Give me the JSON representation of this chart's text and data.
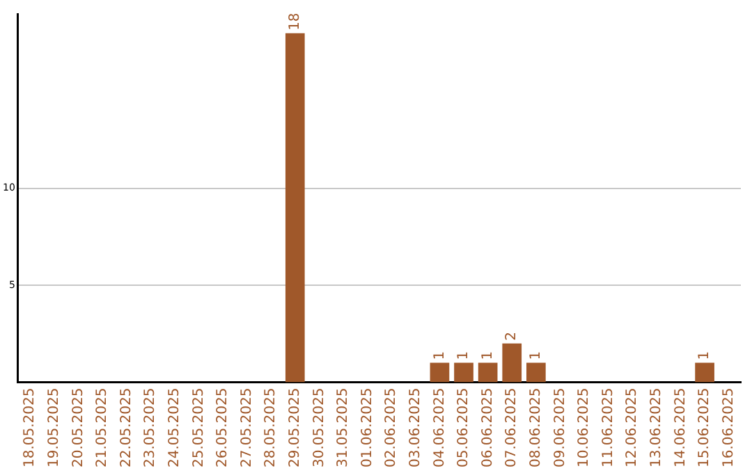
{
  "chart_data": {
    "type": "bar",
    "categories": [
      "18.05.2025",
      "19.05.2025",
      "20.05.2025",
      "21.05.2025",
      "22.05.2025",
      "23.05.2025",
      "24.05.2025",
      "25.05.2025",
      "26.05.2025",
      "27.05.2025",
      "28.05.2025",
      "29.05.2025",
      "30.05.2025",
      "31.05.2025",
      "01.06.2025",
      "02.06.2025",
      "03.06.2025",
      "04.06.2025",
      "05.06.2025",
      "06.06.2025",
      "07.06.2025",
      "08.06.2025",
      "09.06.2025",
      "10.06.2025",
      "11.06.2025",
      "12.06.2025",
      "13.06.2025",
      "14.06.2025",
      "15.06.2025",
      "16.06.2025"
    ],
    "values": [
      0,
      0,
      0,
      0,
      0,
      0,
      0,
      0,
      0,
      0,
      0,
      18,
      0,
      0,
      0,
      0,
      0,
      1,
      1,
      1,
      2,
      1,
      0,
      0,
      0,
      0,
      0,
      0,
      1,
      0
    ],
    "value_labels": [
      null,
      null,
      null,
      null,
      null,
      null,
      null,
      null,
      null,
      null,
      null,
      "18",
      null,
      null,
      null,
      null,
      null,
      "1",
      "1",
      "1",
      "2",
      "1",
      null,
      null,
      null,
      null,
      null,
      null,
      "1",
      null
    ],
    "color": "#a0582a",
    "ylim": [
      0,
      19
    ],
    "yticks": [
      5,
      10
    ],
    "grid": "y",
    "legend": false
  }
}
